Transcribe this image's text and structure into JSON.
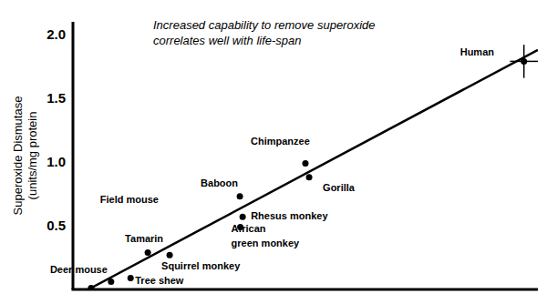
{
  "chart_data": {
    "type": "scatter",
    "annotation": [
      "Increased capability to remove superoxide",
      "correlates well with life-span"
    ],
    "ylabel": [
      "Superoxide Dismutase",
      "(units/mg protein"
    ],
    "xlim": [
      0,
      100
    ],
    "ylim": [
      0,
      2.1
    ],
    "yticks": [
      0.5,
      {
        "value": 1,
        "label": "1.0"
      },
      1.5,
      {
        "value": 2,
        "label": "2.0"
      }
    ],
    "tick_labels": "y",
    "grid": false,
    "series": [
      {
        "type": "scatter",
        "color": "#000000",
        "marker": "circle",
        "point_labels": [
          "Deer mouse",
          "Field mouse",
          "Tree shew",
          "Tamarin",
          "Squirrel monkey",
          "African green  monkey",
          "Rhesus monkey",
          "Baboon",
          "Gorilla",
          "Chimpanzee",
          "Human"
        ],
        "x": [
          3.9,
          8.2,
          12.4,
          16.1,
          20.8,
          36,
          36.5,
          35.9,
          50.8,
          50,
          97
        ],
        "values": [
          0.01,
          0.06,
          0.09,
          0.29,
          0.27,
          0.49,
          0.57,
          0.73,
          0.88,
          0.99,
          1.79
        ],
        "x_errors": [
          null,
          null,
          null,
          null,
          null,
          null,
          null,
          null,
          null,
          null,
          3
        ],
        "y_errors": [
          null,
          null,
          null,
          null,
          null,
          null,
          null,
          null,
          null,
          null,
          0.13
        ]
      },
      {
        "type": "line",
        "color": "#000000",
        "line_style": "solid",
        "x": [
          3.3,
          100
        ],
        "values": [
          0,
          1.88
        ]
      }
    ]
  }
}
